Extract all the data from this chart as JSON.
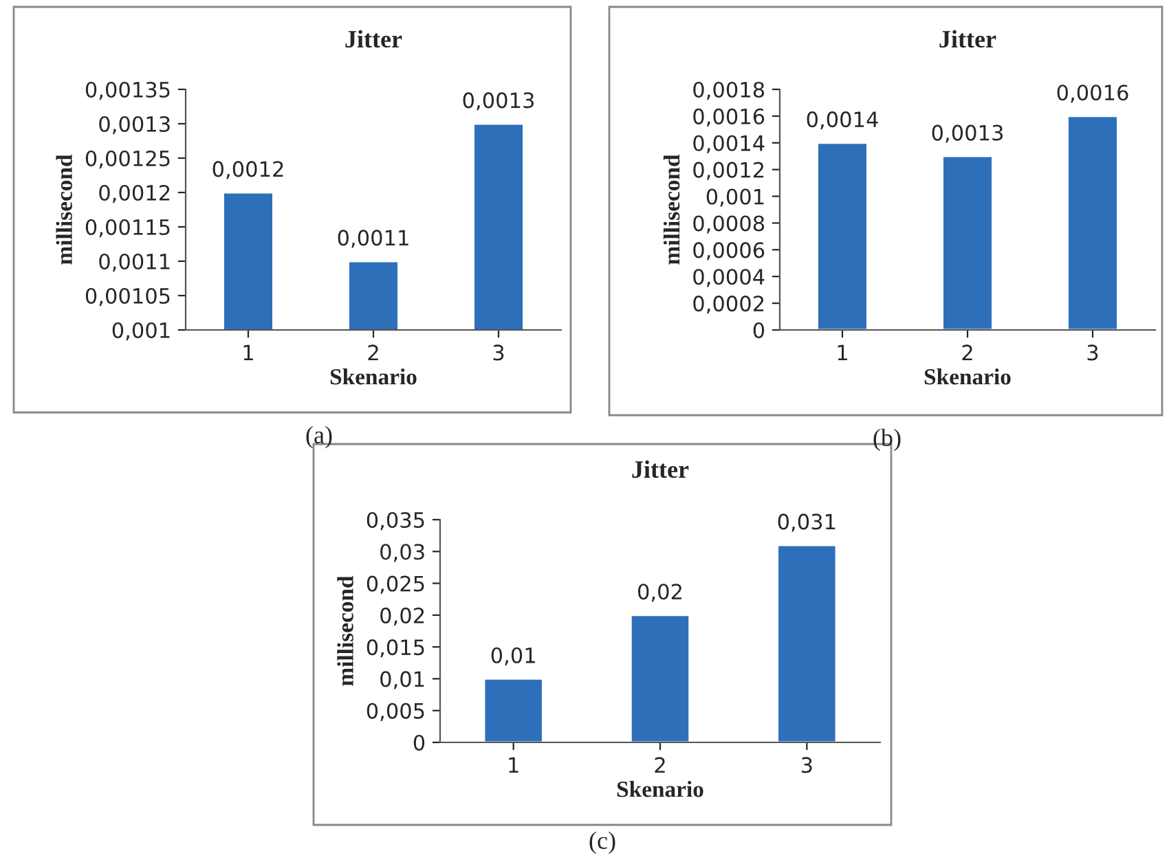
{
  "chart_data": [
    {
      "type": "bar",
      "title": "Jitter",
      "xlabel": "Skenario",
      "ylabel": "millisecond",
      "categories": [
        "1",
        "2",
        "3"
      ],
      "values": [
        0.0012,
        0.0011,
        0.0013
      ],
      "value_labels": [
        "0,0012",
        "0,0011",
        "0,0013"
      ],
      "color": "#2e6fba",
      "ylim": [
        0.001,
        0.00135
      ],
      "yticks": [
        {
          "value": 0.001,
          "label": "0,001"
        },
        {
          "value": 0.00105,
          "label": "0,00105"
        },
        {
          "value": 0.0011,
          "label": "0,0011"
        },
        {
          "value": 0.00115,
          "label": "0,00115"
        },
        {
          "value": 0.0012,
          "label": "0,0012"
        },
        {
          "value": 0.00125,
          "label": "0,00125"
        },
        {
          "value": 0.0013,
          "label": "0,0013"
        },
        {
          "value": 0.00135,
          "label": "0,00135"
        }
      ],
      "annotations": [
        "(a)"
      ]
    },
    {
      "type": "bar",
      "title": "Jitter",
      "xlabel": "Skenario",
      "ylabel": "millisecond",
      "categories": [
        "1",
        "2",
        "3"
      ],
      "values": [
        0.0014,
        0.0013,
        0.0016
      ],
      "value_labels": [
        "0,0014",
        "0,0013",
        "0,0016"
      ],
      "color": "#2e6fba",
      "ylim": [
        0,
        0.0018
      ],
      "yticks": [
        0,
        {
          "value": 0.0002,
          "label": "0,0002"
        },
        {
          "value": 0.0004,
          "label": "0,0004"
        },
        {
          "value": 0.0006,
          "label": "0,0006"
        },
        {
          "value": 0.0008,
          "label": "0,0008"
        },
        {
          "value": 0.001,
          "label": "0,001"
        },
        {
          "value": 0.0012,
          "label": "0,0012"
        },
        {
          "value": 0.0014,
          "label": "0,0014"
        },
        {
          "value": 0.0016,
          "label": "0,0016"
        },
        {
          "value": 0.0018,
          "label": "0,0018"
        }
      ],
      "annotations": [
        "(b)"
      ]
    },
    {
      "type": "bar",
      "title": "Jitter",
      "xlabel": "Skenario",
      "ylabel": "millisecond",
      "categories": [
        "1",
        "2",
        "3"
      ],
      "values": [
        0.01,
        0.02,
        0.031
      ],
      "value_labels": [
        "0,01",
        "0,02",
        "0,031"
      ],
      "color": "#2e6fba",
      "ylim": [
        0,
        0.035
      ],
      "yticks": [
        0,
        {
          "value": 0.005,
          "label": "0,005"
        },
        {
          "value": 0.01,
          "label": "0,01"
        },
        {
          "value": 0.015,
          "label": "0,015"
        },
        {
          "value": 0.02,
          "label": "0,02"
        },
        {
          "value": 0.025,
          "label": "0,025"
        },
        {
          "value": 0.03,
          "label": "0,03"
        },
        {
          "value": 0.035,
          "label": "0,035"
        }
      ],
      "annotations": [
        "(c)"
      ]
    }
  ]
}
